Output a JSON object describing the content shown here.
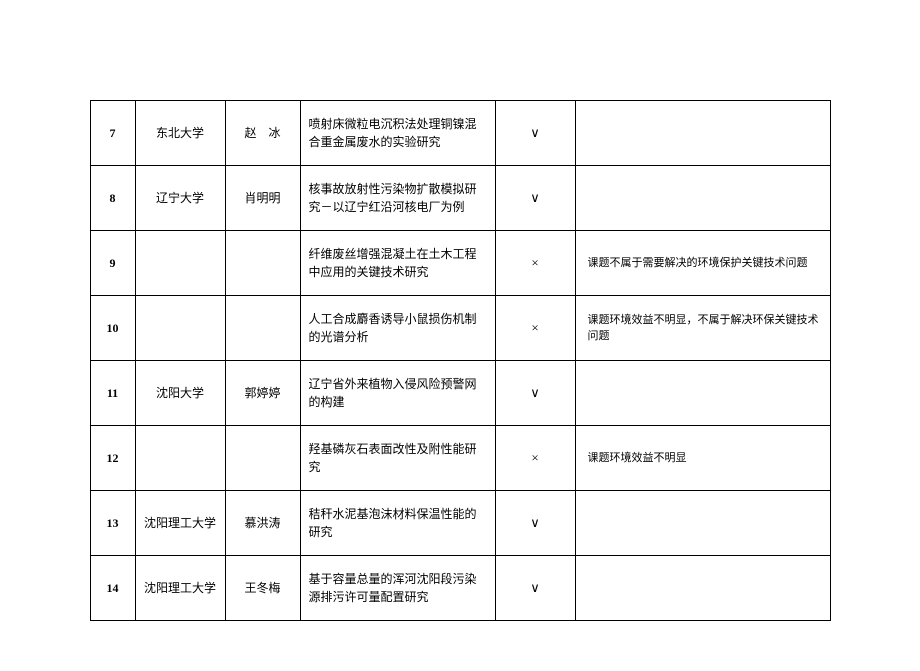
{
  "table": {
    "columns": {
      "num_width": 45,
      "univ_width": 90,
      "person_width": 75,
      "topic_width": 195,
      "status_width": 80,
      "reason_width": 255
    },
    "colors": {
      "border": "#000000",
      "text": "#000000",
      "background": "#ffffff"
    },
    "font_size": 12,
    "reason_font_size": 11,
    "rows": [
      {
        "num": "7",
        "univ": "东北大学",
        "person": "赵　冰",
        "topic": "喷射床微粒电沉积法处理铜镍混合重金属废水的实验研究",
        "status": "∨",
        "reason": ""
      },
      {
        "num": "8",
        "univ": "辽宁大学",
        "person": "肖明明",
        "topic": "核事故放射性污染物扩散模拟研究－以辽宁红沿河核电厂为例",
        "status": "∨",
        "reason": ""
      },
      {
        "num": "9",
        "univ": "",
        "person": "",
        "topic": "纤维废丝增强混凝土在土木工程中应用的关键技术研究",
        "status": "×",
        "reason": "课题不属于需要解决的环境保护关键技术问题"
      },
      {
        "num": "10",
        "univ": "",
        "person": "",
        "topic": "人工合成麝香诱导小鼠损伤机制的光谱分析",
        "status": "×",
        "reason": "课题环境效益不明显，不属于解决环保关键技术问题"
      },
      {
        "num": "11",
        "univ": "沈阳大学",
        "person": "郭婷婷",
        "topic": "辽宁省外来植物入侵风险预警网的构建",
        "status": "∨",
        "reason": ""
      },
      {
        "num": "12",
        "univ": "",
        "person": "",
        "topic": "羟基磷灰石表面改性及附性能研究",
        "status": "×",
        "reason": "课题环境效益不明显"
      },
      {
        "num": "13",
        "univ": "沈阳理工大学",
        "person": "慕洪涛",
        "topic": "秸秆水泥基泡沫材料保温性能的研究",
        "status": "∨",
        "reason": ""
      },
      {
        "num": "14",
        "univ": "沈阳理工大学",
        "person": "王冬梅",
        "topic": "基于容量总量的浑河沈阳段污染源排污许可量配置研究",
        "status": "∨",
        "reason": ""
      }
    ]
  }
}
